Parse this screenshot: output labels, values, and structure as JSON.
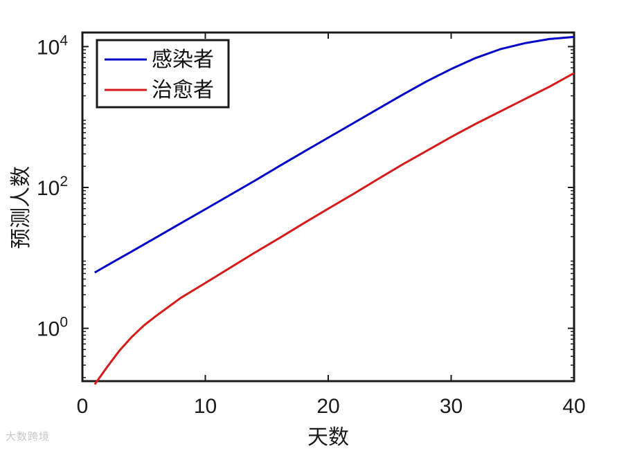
{
  "chart_data": {
    "type": "line",
    "xlabel": "天数",
    "ylabel": "预测人数",
    "xlim": [
      0,
      40
    ],
    "ylim_log10": [
      -0.75,
      4.2
    ],
    "y_scale": "log",
    "x_ticks": [
      0,
      10,
      20,
      30,
      40
    ],
    "x_tick_labels": [
      "0",
      "10",
      "20",
      "30",
      "40"
    ],
    "y_ticks_exp": [
      0,
      2,
      4
    ],
    "y_tick_base": "10",
    "grid": false,
    "legend_placement": "top-left",
    "x": [
      1,
      2,
      3,
      4,
      5,
      6,
      8,
      10,
      12,
      14,
      16,
      18,
      20,
      22,
      24,
      26,
      28,
      30,
      32,
      34,
      36,
      38,
      40
    ],
    "series": [
      {
        "name": "感染者",
        "color": "#0000c8",
        "values": [
          6.2,
          7.8,
          9.8,
          12.3,
          15.5,
          19.5,
          31,
          49,
          78,
          124,
          200,
          320,
          510,
          810,
          1290,
          2050,
          3200,
          4800,
          6900,
          9200,
          11200,
          12800,
          13700
        ]
      },
      {
        "name": "治愈者",
        "color": "#d71a1a",
        "values": [
          0.16,
          0.28,
          0.48,
          0.75,
          1.1,
          1.5,
          2.7,
          4.4,
          7.2,
          11.8,
          19,
          31,
          50,
          80,
          130,
          210,
          330,
          520,
          800,
          1200,
          1800,
          2700,
          4200
        ]
      }
    ]
  },
  "watermark": "大数跨境"
}
